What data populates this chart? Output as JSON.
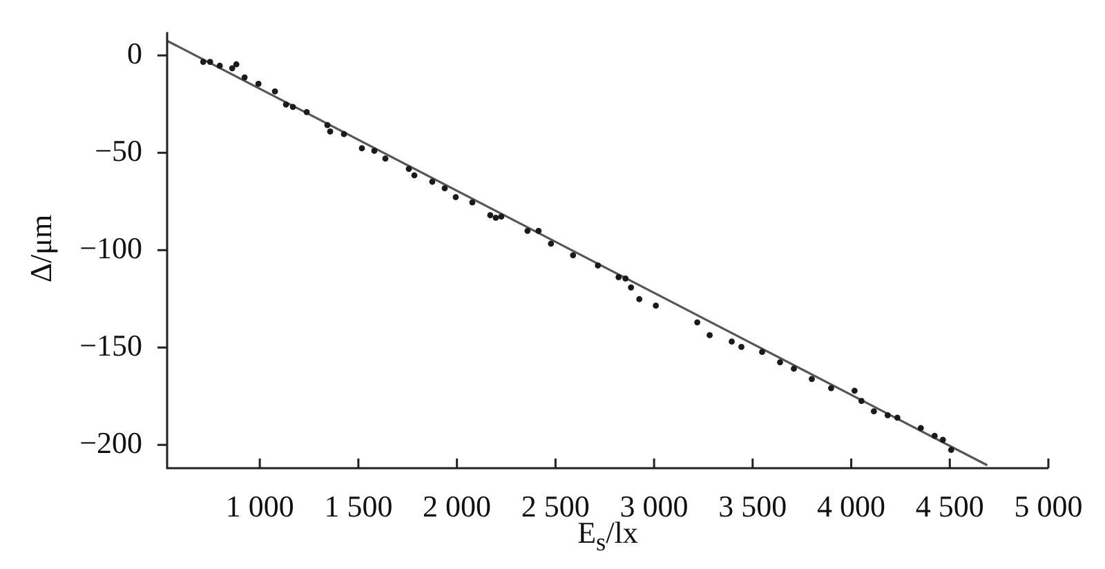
{
  "chart_data": {
    "type": "scatter",
    "xlabel": "E$_{s}$/lx",
    "ylabel": "Δ/μm",
    "marker": "circle",
    "xlim": [
      530,
      5000
    ],
    "ylim": [
      -212,
      12
    ],
    "xticks": [
      {
        "value": 1000,
        "label": "1 000"
      },
      {
        "value": 1500,
        "label": "1 500"
      },
      {
        "value": 2000,
        "label": "2 000"
      },
      {
        "value": 2500,
        "label": "2 500"
      },
      {
        "value": 3000,
        "label": "3 000"
      },
      {
        "value": 3500,
        "label": "3 500"
      },
      {
        "value": 4000,
        "label": "4 000"
      },
      {
        "value": 4500,
        "label": "4 500"
      },
      {
        "value": 5000,
        "label": "5 000"
      }
    ],
    "yticks": [
      0,
      -50,
      -100,
      -150,
      -200
    ],
    "x": [
      713,
      748,
      797,
      860,
      881,
      923,
      993,
      1077,
      1133,
      1168,
      1238,
      1343,
      1357,
      1427,
      1518,
      1581,
      1637,
      1756,
      1784,
      1875,
      1938,
      1994,
      2078,
      2169,
      2197,
      2225,
      2358,
      2414,
      2477,
      2589,
      2715,
      2820,
      2855,
      2883,
      2925,
      3009,
      3219,
      3282,
      3394,
      3443,
      3548,
      3639,
      3709,
      3800,
      3898,
      4017,
      4052,
      4115,
      4185,
      4234,
      4353,
      4423,
      4465,
      4507
    ],
    "series": [
      {
        "color": "#1a1a1a",
        "values": [
          -3.3,
          -3.3,
          -5.3,
          -6.6,
          -4.6,
          -11.3,
          -14.6,
          -18.5,
          -25.2,
          -26.5,
          -29.1,
          -35.8,
          -39.1,
          -40.4,
          -47.7,
          -49,
          -53,
          -58.3,
          -61.6,
          -64.9,
          -68.2,
          -72.8,
          -75.5,
          -82.1,
          -83.4,
          -82.8,
          -90.1,
          -90.1,
          -96.7,
          -102.6,
          -107.9,
          -113.9,
          -114.6,
          -119.2,
          -125.2,
          -128.5,
          -137.1,
          -143.7,
          -147,
          -149.7,
          -152.3,
          -157.6,
          -160.9,
          -166.2,
          -170.9,
          -172.2,
          -177.5,
          -182.8,
          -184.8,
          -186.1,
          -191.4,
          -195.4,
          -197.4,
          -202.6
        ]
      },
      {
        "type": "line",
        "marker": "none",
        "color": "#555555",
        "x": [
          530,
          4690
        ],
        "values": [
          7.5,
          -210.5
        ]
      }
    ]
  }
}
